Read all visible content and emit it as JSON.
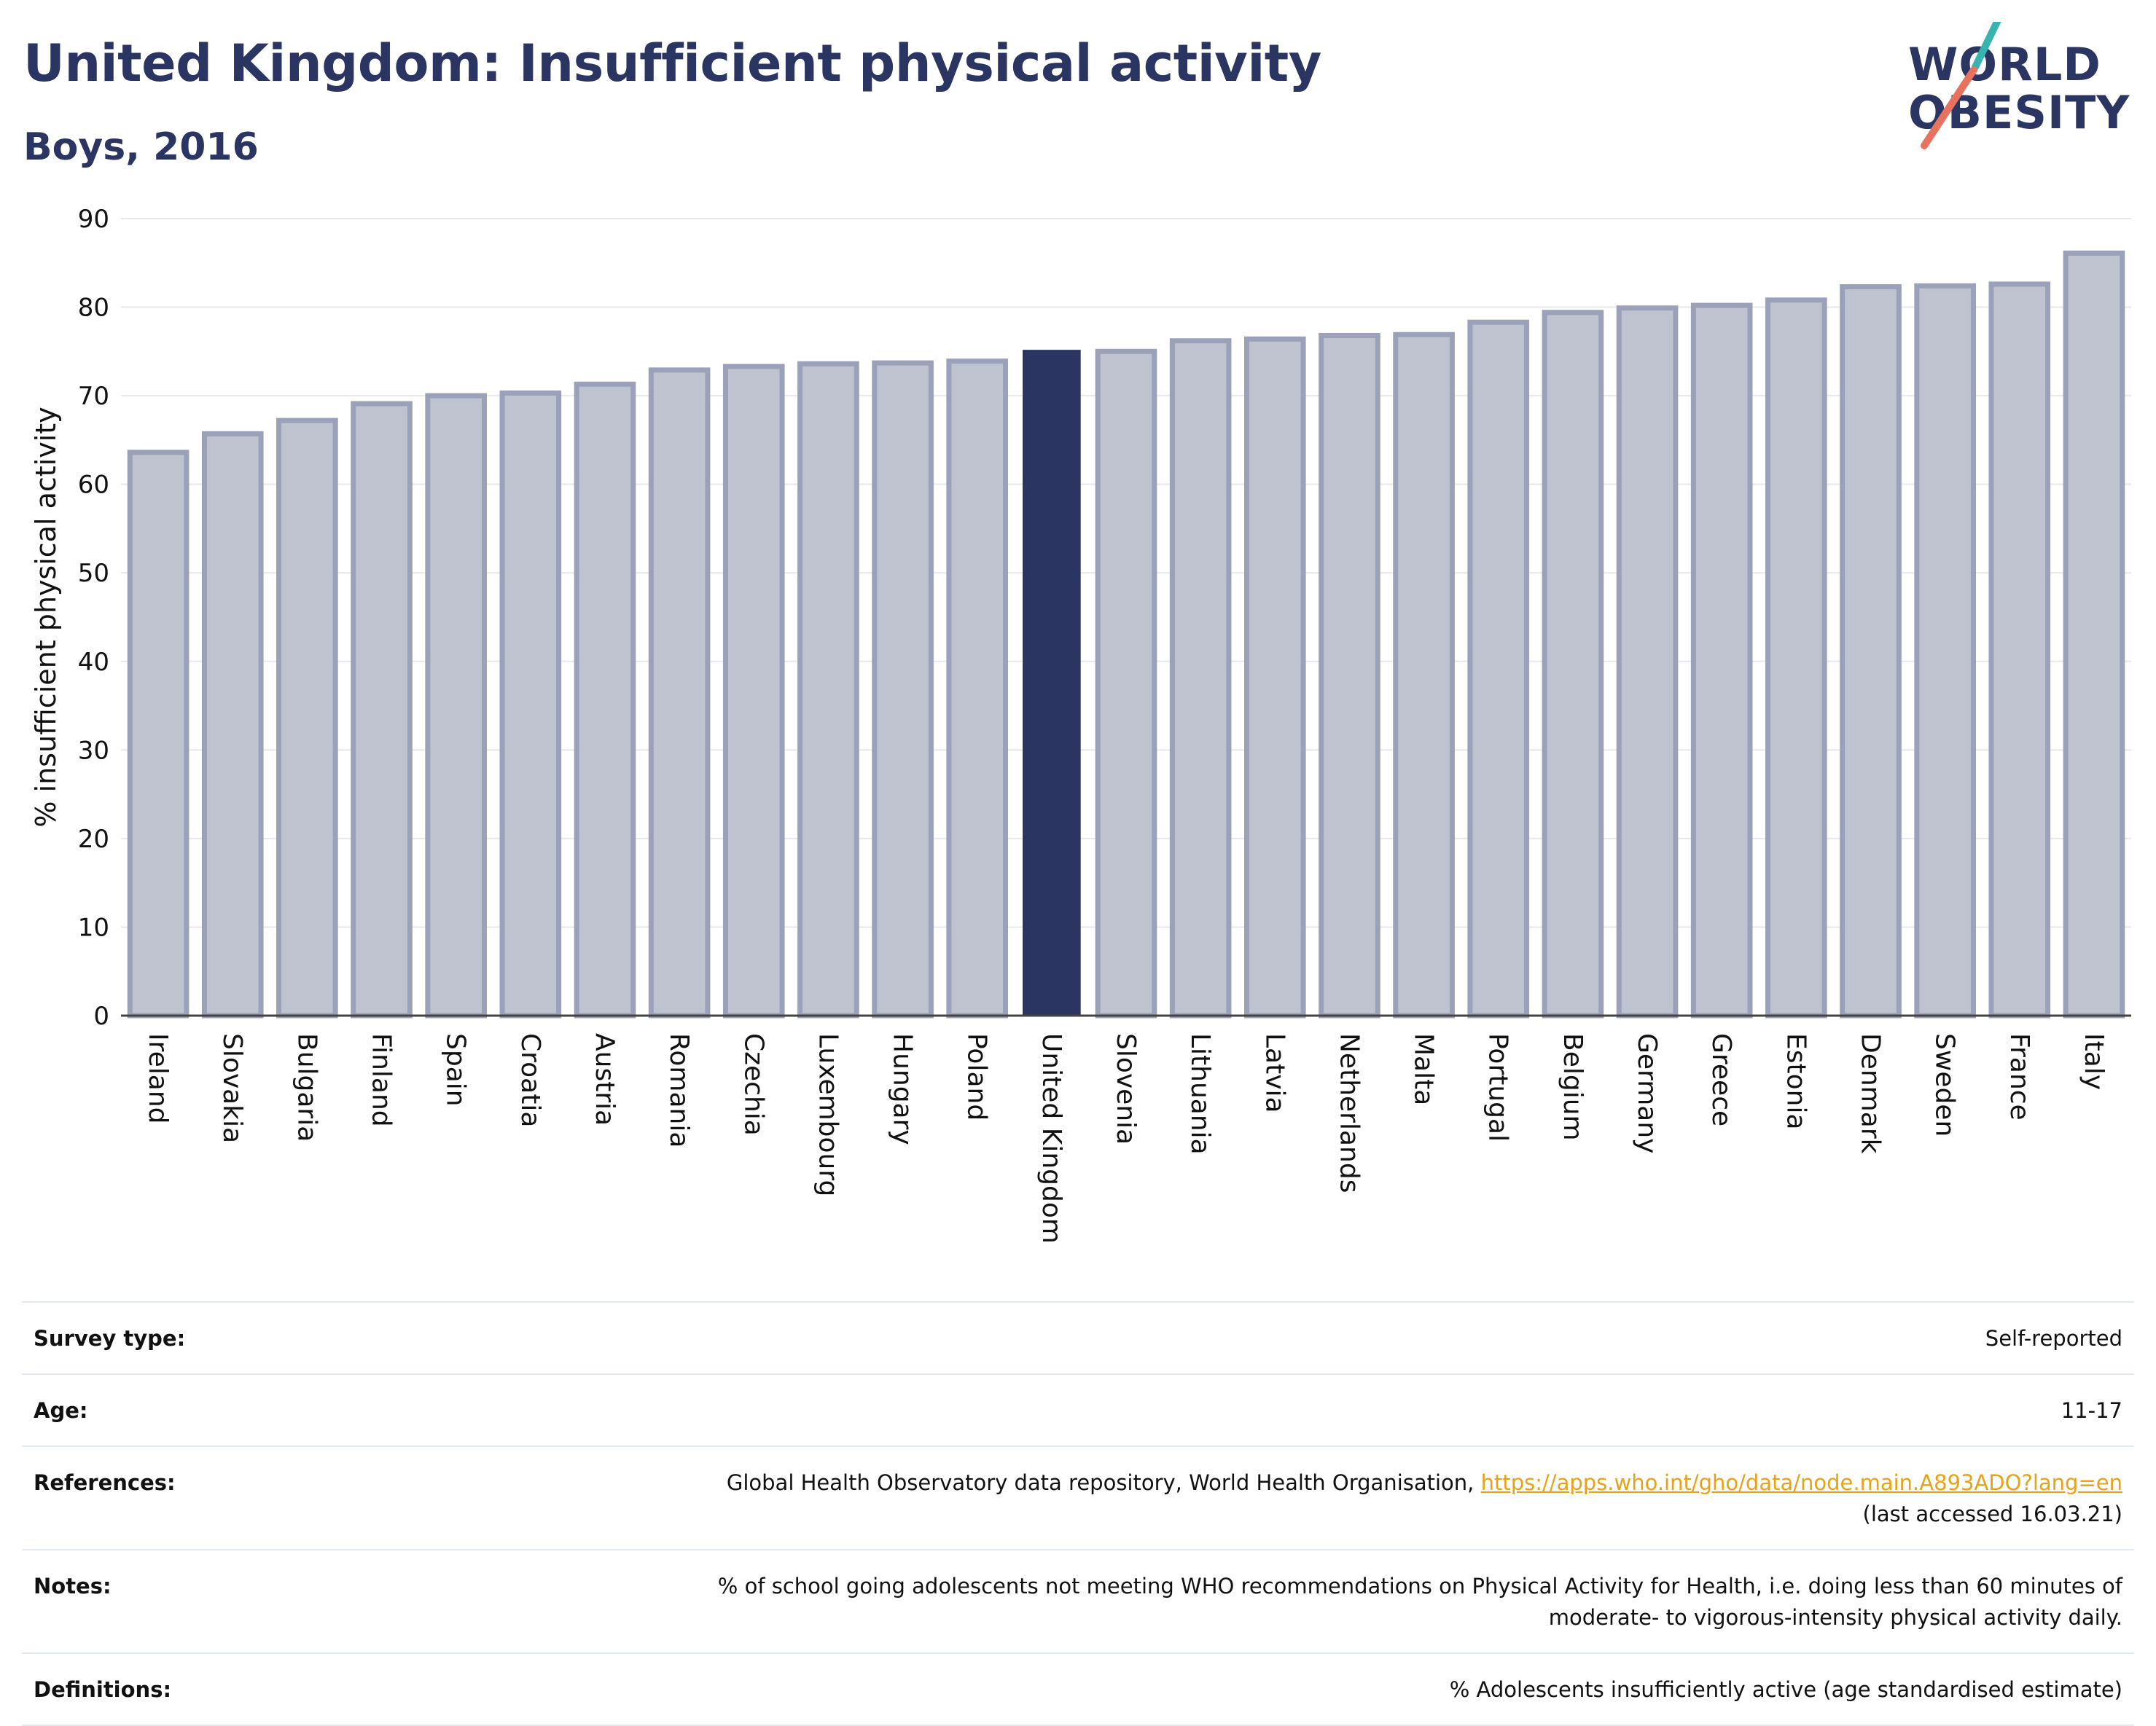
{
  "header": {
    "title": "United Kingdom: Insufficient physical activity",
    "subtitle": "Boys, 2016"
  },
  "logo": {
    "line1": "WORLD",
    "line2": "OBESITY",
    "text": "WORLD OBESITY"
  },
  "colors": {
    "highlight": "#2a3561",
    "bar_fill": "#bfc3d0",
    "bar_stroke": "#9aa1b8",
    "grid": "#e6e8ee",
    "logo_teal": "#37b3b0",
    "logo_coral": "#e6725f",
    "link": "#e8a21a"
  },
  "chart_data": {
    "type": "bar",
    "ylabel": "% insufficient physical activity",
    "ylim": [
      0,
      90
    ],
    "yticks": [
      0,
      10,
      20,
      30,
      40,
      50,
      60,
      70,
      80,
      90
    ],
    "grid": true,
    "highlight": "United Kingdom",
    "categories": [
      "Ireland",
      "Slovakia",
      "Bulgaria",
      "Finland",
      "Spain",
      "Croatia",
      "Austria",
      "Romania",
      "Czechia",
      "Luxembourg",
      "Hungary",
      "Poland",
      "United Kingdom",
      "Slovenia",
      "Lithuania",
      "Latvia",
      "Netherlands",
      "Malta",
      "Portugal",
      "Belgium",
      "Germany",
      "Greece",
      "Estonia",
      "Denmark",
      "Sweden",
      "France",
      "Italy"
    ],
    "values": [
      63.6,
      65.7,
      67.2,
      69.1,
      70.0,
      70.3,
      71.3,
      72.9,
      73.3,
      73.6,
      73.7,
      73.9,
      75.1,
      75.0,
      76.2,
      76.4,
      76.8,
      76.9,
      78.3,
      79.4,
      79.9,
      80.2,
      80.8,
      82.3,
      82.4,
      82.6,
      86.1
    ]
  },
  "meta": {
    "survey_type_label": "Survey type:",
    "survey_type_value": "Self-reported",
    "age_label": "Age:",
    "age_value": "11-17",
    "references_label": "References:",
    "references_text": "Global Health Observatory data repository, World Health Organisation, ",
    "references_link": "https://apps.who.int/gho/data/node.main.A893ADO?lang=en",
    "references_accessed": "(last accessed 16.03.21)",
    "notes_label": "Notes:",
    "notes_line1": "% of school going adolescents not meeting WHO recommendations on Physical Activity for Health, i.e. doing less than 60 minutes of",
    "notes_line2": "moderate- to vigorous-intensity physical activity daily.",
    "definitions_label": "Definitions:",
    "definitions_value": "% Adolescents insufficiently active (age standardised estimate)"
  }
}
